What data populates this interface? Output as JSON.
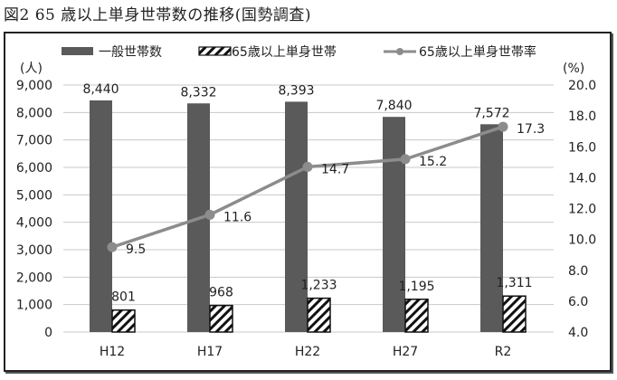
{
  "figure": {
    "title": "図2  65 歳以上単身世帯数の推移(国勢調査)"
  },
  "legend": {
    "items": [
      {
        "label": "一般世帯数",
        "style": "solid-gray-bar"
      },
      {
        "label": "65歳以上単身世帯",
        "style": "hatched-bar"
      },
      {
        "label": "65歳以上単身世帯率",
        "style": "line-marker"
      }
    ]
  },
  "axes": {
    "left_unit": "(人)",
    "right_unit": "(%)",
    "left_ticks": [
      "0",
      "1,000",
      "2,000",
      "3,000",
      "4,000",
      "5,000",
      "6,000",
      "7,000",
      "8,000",
      "9,000"
    ],
    "right_ticks": [
      "4.0",
      "6.0",
      "8.0",
      "10.0",
      "12.0",
      "14.0",
      "16.0",
      "18.0",
      "20.0"
    ]
  },
  "colors": {
    "gray_bar": "#5a5a5a",
    "line": "#8c8c8c",
    "grid": "#c8c8c8",
    "hatch": "#111111"
  },
  "chart_data": {
    "type": "bar",
    "title": "図2  65 歳以上単身世帯数の推移(国勢調査)",
    "categories": [
      "H12",
      "H17",
      "H22",
      "H27",
      "R2"
    ],
    "series": [
      {
        "name": "一般世帯数",
        "type": "bar",
        "axis": "left",
        "values": [
          8440,
          8332,
          8393,
          7840,
          7572
        ],
        "labels": [
          "8,440",
          "8,332",
          "8,393",
          "7,840",
          "7,572"
        ]
      },
      {
        "name": "65歳以上単身世帯",
        "type": "bar",
        "axis": "left",
        "values": [
          801,
          968,
          1233,
          1195,
          1311
        ],
        "labels": [
          "801",
          "968",
          "1,233",
          "1,195",
          "1,311"
        ]
      },
      {
        "name": "65歳以上単身世帯率",
        "type": "line",
        "axis": "right",
        "values": [
          9.5,
          11.6,
          14.7,
          15.2,
          17.3
        ],
        "labels": [
          "9.5",
          "11.6",
          "14.7",
          "15.2",
          "17.3"
        ]
      }
    ],
    "xlabel": "",
    "ylabel": "(人)",
    "ylabel_right": "(%)",
    "ylim": [
      0,
      9000
    ],
    "ylim_right": [
      4.0,
      20.0
    ],
    "grid": true,
    "legend_position": "top"
  }
}
